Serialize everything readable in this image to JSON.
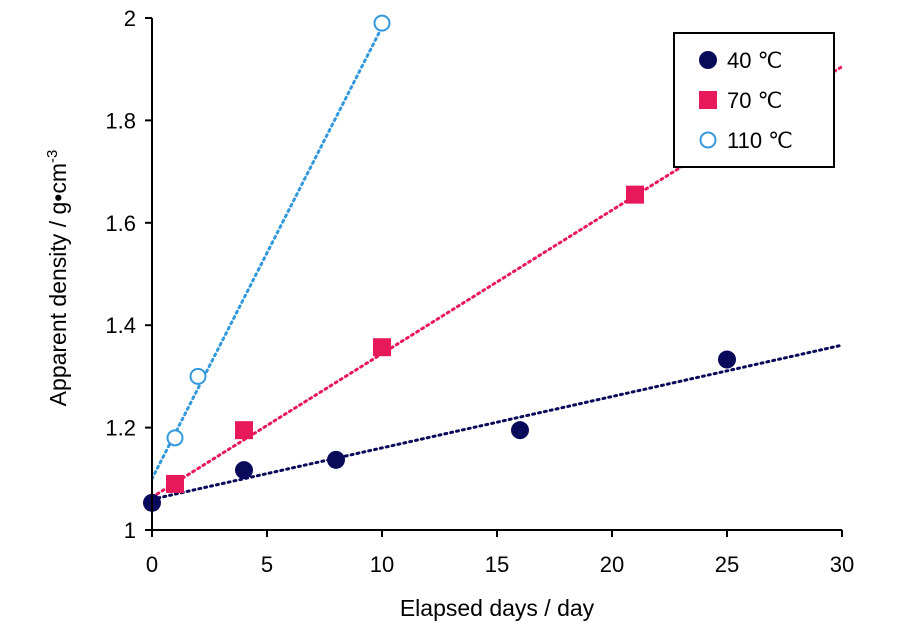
{
  "chart_data": {
    "type": "scatter",
    "xlabel": "Elapsed days / day",
    "ylabel_main": "Apparent density / g•cm",
    "ylabel_sup": "-3",
    "xlim": [
      0,
      30
    ],
    "ylim": [
      1,
      2
    ],
    "xticks": [
      "0",
      "5",
      "10",
      "15",
      "20",
      "25",
      "30"
    ],
    "yticks": [
      "1",
      "1.2",
      "1.4",
      "1.6",
      "1.8",
      "2"
    ],
    "xtick_values": [
      0,
      5,
      10,
      15,
      20,
      25,
      30
    ],
    "ytick_values": [
      1,
      1.2,
      1.4,
      1.6,
      1.8,
      2
    ],
    "grid": false,
    "legend_position": "top-right",
    "series": [
      {
        "name": "40 ℃",
        "marker": "filled-circle",
        "color": "#0a0a5a",
        "points": [
          [
            0,
            1.053
          ],
          [
            4,
            1.117
          ],
          [
            8,
            1.137
          ],
          [
            16,
            1.195
          ],
          [
            25,
            1.333
          ]
        ],
        "trendline": [
          [
            0,
            1.06
          ],
          [
            30,
            1.361
          ]
        ]
      },
      {
        "name": "70 ℃",
        "marker": "filled-square",
        "color": "#e8195a",
        "points": [
          [
            1,
            1.09
          ],
          [
            4,
            1.195
          ],
          [
            10,
            1.357
          ],
          [
            21,
            1.655
          ]
        ],
        "trendline": [
          [
            0,
            1.064
          ],
          [
            30,
            1.905
          ]
        ]
      },
      {
        "name": "110 ℃",
        "marker": "open-circle",
        "color": "#3399dd",
        "points": [
          [
            1,
            1.18
          ],
          [
            2,
            1.3
          ],
          [
            10,
            1.99
          ]
        ],
        "trendline": [
          [
            0,
            1.1
          ],
          [
            10.2,
            2.0
          ]
        ]
      }
    ]
  }
}
